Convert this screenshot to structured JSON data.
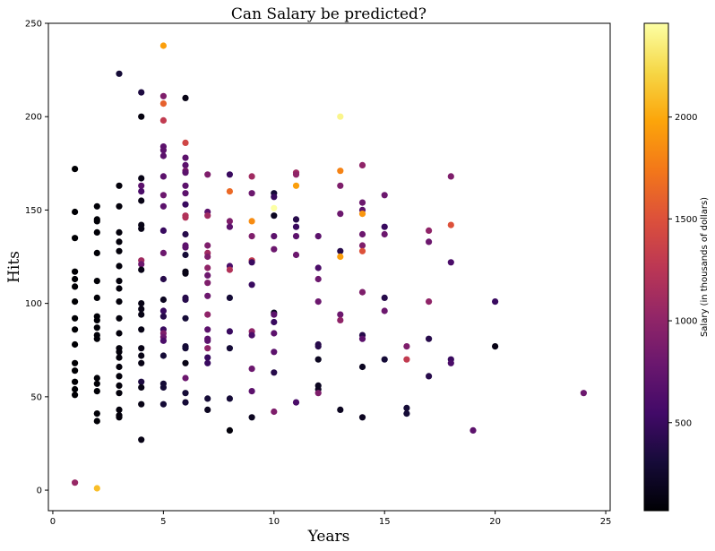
{
  "chart_data": {
    "type": "scatter",
    "title": "Can Salary be predicted?",
    "xlabel": "Years",
    "ylabel": "Hits",
    "xlim": [
      -0.2,
      25.2
    ],
    "ylim": [
      -11,
      250
    ],
    "x_ticks": [
      0,
      5,
      10,
      15,
      20,
      25
    ],
    "y_ticks": [
      0,
      50,
      100,
      150,
      200,
      250
    ],
    "grid": false,
    "colormap": "inferno",
    "colorbar": {
      "label": "Salary (in thousands of dollars)",
      "range": [
        68,
        2460
      ],
      "ticks": [
        500,
        1000,
        1500,
        2000
      ]
    },
    "points": [
      {
        "x": 1,
        "y": 172,
        "salary": 70
      },
      {
        "x": 1,
        "y": 149,
        "salary": 70
      },
      {
        "x": 1,
        "y": 135,
        "salary": 70
      },
      {
        "x": 1,
        "y": 117,
        "salary": 70
      },
      {
        "x": 1,
        "y": 113,
        "salary": 70
      },
      {
        "x": 1,
        "y": 109,
        "salary": 70
      },
      {
        "x": 1,
        "y": 101,
        "salary": 70
      },
      {
        "x": 1,
        "y": 92,
        "salary": 70
      },
      {
        "x": 1,
        "y": 86,
        "salary": 70
      },
      {
        "x": 1,
        "y": 78,
        "salary": 70
      },
      {
        "x": 1,
        "y": 68,
        "salary": 70
      },
      {
        "x": 1,
        "y": 64,
        "salary": 70
      },
      {
        "x": 1,
        "y": 58,
        "salary": 70
      },
      {
        "x": 1,
        "y": 54,
        "salary": 70
      },
      {
        "x": 1,
        "y": 51,
        "salary": 70
      },
      {
        "x": 1,
        "y": 4,
        "salary": 1050
      },
      {
        "x": 2,
        "y": 152,
        "salary": 80
      },
      {
        "x": 2,
        "y": 145,
        "salary": 80
      },
      {
        "x": 2,
        "y": 144,
        "salary": 80
      },
      {
        "x": 2,
        "y": 138,
        "salary": 80
      },
      {
        "x": 2,
        "y": 127,
        "salary": 80
      },
      {
        "x": 2,
        "y": 112,
        "salary": 80
      },
      {
        "x": 2,
        "y": 103,
        "salary": 80
      },
      {
        "x": 2,
        "y": 93,
        "salary": 80
      },
      {
        "x": 2,
        "y": 91,
        "salary": 80
      },
      {
        "x": 2,
        "y": 87,
        "salary": 80
      },
      {
        "x": 2,
        "y": 83,
        "salary": 80
      },
      {
        "x": 2,
        "y": 81,
        "salary": 80
      },
      {
        "x": 2,
        "y": 60,
        "salary": 80
      },
      {
        "x": 2,
        "y": 57,
        "salary": 80
      },
      {
        "x": 2,
        "y": 53,
        "salary": 80
      },
      {
        "x": 2,
        "y": 41,
        "salary": 80
      },
      {
        "x": 2,
        "y": 37,
        "salary": 80
      },
      {
        "x": 2,
        "y": 1,
        "salary": 2100
      },
      {
        "x": 3,
        "y": 223,
        "salary": 300
      },
      {
        "x": 3,
        "y": 163,
        "salary": 100
      },
      {
        "x": 3,
        "y": 152,
        "salary": 100
      },
      {
        "x": 3,
        "y": 138,
        "salary": 100
      },
      {
        "x": 3,
        "y": 133,
        "salary": 100
      },
      {
        "x": 3,
        "y": 128,
        "salary": 100
      },
      {
        "x": 3,
        "y": 120,
        "salary": 100
      },
      {
        "x": 3,
        "y": 112,
        "salary": 100
      },
      {
        "x": 3,
        "y": 108,
        "salary": 100
      },
      {
        "x": 3,
        "y": 101,
        "salary": 100
      },
      {
        "x": 3,
        "y": 92,
        "salary": 100
      },
      {
        "x": 3,
        "y": 84,
        "salary": 100
      },
      {
        "x": 3,
        "y": 76,
        "salary": 100
      },
      {
        "x": 3,
        "y": 74,
        "salary": 100
      },
      {
        "x": 3,
        "y": 71,
        "salary": 100
      },
      {
        "x": 3,
        "y": 66,
        "salary": 100
      },
      {
        "x": 3,
        "y": 61,
        "salary": 100
      },
      {
        "x": 3,
        "y": 56,
        "salary": 100
      },
      {
        "x": 3,
        "y": 52,
        "salary": 100
      },
      {
        "x": 3,
        "y": 43,
        "salary": 100
      },
      {
        "x": 3,
        "y": 40,
        "salary": 100
      },
      {
        "x": 3,
        "y": 39,
        "salary": 100
      },
      {
        "x": 4,
        "y": 213,
        "salary": 350
      },
      {
        "x": 4,
        "y": 200,
        "salary": 120
      },
      {
        "x": 4,
        "y": 167,
        "salary": 150
      },
      {
        "x": 4,
        "y": 163,
        "salary": 700
      },
      {
        "x": 4,
        "y": 160,
        "salary": 600
      },
      {
        "x": 4,
        "y": 155,
        "salary": 150
      },
      {
        "x": 4,
        "y": 142,
        "salary": 150
      },
      {
        "x": 4,
        "y": 140,
        "salary": 150
      },
      {
        "x": 4,
        "y": 123,
        "salary": 1100
      },
      {
        "x": 4,
        "y": 121,
        "salary": 800
      },
      {
        "x": 4,
        "y": 118,
        "salary": 150
      },
      {
        "x": 4,
        "y": 100,
        "salary": 150
      },
      {
        "x": 4,
        "y": 97,
        "salary": 150
      },
      {
        "x": 4,
        "y": 94,
        "salary": 150
      },
      {
        "x": 4,
        "y": 86,
        "salary": 150
      },
      {
        "x": 4,
        "y": 76,
        "salary": 150
      },
      {
        "x": 4,
        "y": 72,
        "salary": 150
      },
      {
        "x": 4,
        "y": 68,
        "salary": 150
      },
      {
        "x": 4,
        "y": 58,
        "salary": 350
      },
      {
        "x": 4,
        "y": 55,
        "salary": 150
      },
      {
        "x": 4,
        "y": 46,
        "salary": 150
      },
      {
        "x": 4,
        "y": 27,
        "salary": 150
      },
      {
        "x": 5,
        "y": 238,
        "salary": 1950
      },
      {
        "x": 5,
        "y": 211,
        "salary": 900
      },
      {
        "x": 5,
        "y": 207,
        "salary": 1600
      },
      {
        "x": 5,
        "y": 198,
        "salary": 1300
      },
      {
        "x": 5,
        "y": 184,
        "salary": 700
      },
      {
        "x": 5,
        "y": 182,
        "salary": 700
      },
      {
        "x": 5,
        "y": 179,
        "salary": 700
      },
      {
        "x": 5,
        "y": 168,
        "salary": 700
      },
      {
        "x": 5,
        "y": 158,
        "salary": 800
      },
      {
        "x": 5,
        "y": 152,
        "salary": 700
      },
      {
        "x": 5,
        "y": 139,
        "salary": 500
      },
      {
        "x": 5,
        "y": 127,
        "salary": 800
      },
      {
        "x": 5,
        "y": 113,
        "salary": 400
      },
      {
        "x": 5,
        "y": 102,
        "salary": 200
      },
      {
        "x": 5,
        "y": 96,
        "salary": 500
      },
      {
        "x": 5,
        "y": 93,
        "salary": 400
      },
      {
        "x": 5,
        "y": 86,
        "salary": 500
      },
      {
        "x": 5,
        "y": 84,
        "salary": 900
      },
      {
        "x": 5,
        "y": 82,
        "salary": 800
      },
      {
        "x": 5,
        "y": 80,
        "salary": 600
      },
      {
        "x": 5,
        "y": 72,
        "salary": 300
      },
      {
        "x": 5,
        "y": 57,
        "salary": 300
      },
      {
        "x": 5,
        "y": 55,
        "salary": 300
      },
      {
        "x": 5,
        "y": 46,
        "salary": 300
      },
      {
        "x": 6,
        "y": 210,
        "salary": 150
      },
      {
        "x": 6,
        "y": 186,
        "salary": 1400
      },
      {
        "x": 6,
        "y": 178,
        "salary": 700
      },
      {
        "x": 6,
        "y": 174,
        "salary": 700
      },
      {
        "x": 6,
        "y": 171,
        "salary": 900
      },
      {
        "x": 6,
        "y": 170,
        "salary": 700
      },
      {
        "x": 6,
        "y": 163,
        "salary": 700
      },
      {
        "x": 6,
        "y": 159,
        "salary": 700
      },
      {
        "x": 6,
        "y": 153,
        "salary": 500
      },
      {
        "x": 6,
        "y": 147,
        "salary": 1200
      },
      {
        "x": 6,
        "y": 146,
        "salary": 1200
      },
      {
        "x": 6,
        "y": 137,
        "salary": 400
      },
      {
        "x": 6,
        "y": 131,
        "salary": 700
      },
      {
        "x": 6,
        "y": 130,
        "salary": 700
      },
      {
        "x": 6,
        "y": 126,
        "salary": 300
      },
      {
        "x": 6,
        "y": 117,
        "salary": 150
      },
      {
        "x": 6,
        "y": 116,
        "salary": 150
      },
      {
        "x": 6,
        "y": 103,
        "salary": 400
      },
      {
        "x": 6,
        "y": 102,
        "salary": 400
      },
      {
        "x": 6,
        "y": 92,
        "salary": 300
      },
      {
        "x": 6,
        "y": 77,
        "salary": 300
      },
      {
        "x": 6,
        "y": 76,
        "salary": 300
      },
      {
        "x": 6,
        "y": 68,
        "salary": 150
      },
      {
        "x": 6,
        "y": 60,
        "salary": 800
      },
      {
        "x": 6,
        "y": 52,
        "salary": 300
      },
      {
        "x": 6,
        "y": 47,
        "salary": 300
      },
      {
        "x": 7,
        "y": 169,
        "salary": 900
      },
      {
        "x": 7,
        "y": 149,
        "salary": 700
      },
      {
        "x": 7,
        "y": 147,
        "salary": 1100
      },
      {
        "x": 7,
        "y": 131,
        "salary": 900
      },
      {
        "x": 7,
        "y": 127,
        "salary": 1100
      },
      {
        "x": 7,
        "y": 125,
        "salary": 900
      },
      {
        "x": 7,
        "y": 119,
        "salary": 1000
      },
      {
        "x": 7,
        "y": 115,
        "salary": 800
      },
      {
        "x": 7,
        "y": 111,
        "salary": 900
      },
      {
        "x": 7,
        "y": 104,
        "salary": 800
      },
      {
        "x": 7,
        "y": 94,
        "salary": 1000
      },
      {
        "x": 7,
        "y": 86,
        "salary": 700
      },
      {
        "x": 7,
        "y": 81,
        "salary": 700
      },
      {
        "x": 7,
        "y": 80,
        "salary": 700
      },
      {
        "x": 7,
        "y": 76,
        "salary": 1000
      },
      {
        "x": 7,
        "y": 71,
        "salary": 500
      },
      {
        "x": 7,
        "y": 68,
        "salary": 500
      },
      {
        "x": 7,
        "y": 49,
        "salary": 300
      },
      {
        "x": 7,
        "y": 43,
        "salary": 200
      },
      {
        "x": 8,
        "y": 169,
        "salary": 500
      },
      {
        "x": 8,
        "y": 160,
        "salary": 1650
      },
      {
        "x": 8,
        "y": 144,
        "salary": 900
      },
      {
        "x": 8,
        "y": 141,
        "salary": 700
      },
      {
        "x": 8,
        "y": 120,
        "salary": 600
      },
      {
        "x": 8,
        "y": 118,
        "salary": 1200
      },
      {
        "x": 8,
        "y": 103,
        "salary": 300
      },
      {
        "x": 8,
        "y": 85,
        "salary": 500
      },
      {
        "x": 8,
        "y": 76,
        "salary": 300
      },
      {
        "x": 8,
        "y": 49,
        "salary": 300
      },
      {
        "x": 8,
        "y": 32,
        "salary": 100
      },
      {
        "x": 9,
        "y": 168,
        "salary": 1100
      },
      {
        "x": 9,
        "y": 159,
        "salary": 800
      },
      {
        "x": 9,
        "y": 144,
        "salary": 1850
      },
      {
        "x": 9,
        "y": 136,
        "salary": 900
      },
      {
        "x": 9,
        "y": 123,
        "salary": 1300
      },
      {
        "x": 9,
        "y": 122,
        "salary": 500
      },
      {
        "x": 9,
        "y": 110,
        "salary": 500
      },
      {
        "x": 9,
        "y": 85,
        "salary": 1000
      },
      {
        "x": 9,
        "y": 83,
        "salary": 600
      },
      {
        "x": 9,
        "y": 65,
        "salary": 800
      },
      {
        "x": 9,
        "y": 53,
        "salary": 700
      },
      {
        "x": 9,
        "y": 39,
        "salary": 200
      },
      {
        "x": 10,
        "y": 159,
        "salary": 300
      },
      {
        "x": 10,
        "y": 157,
        "salary": 500
      },
      {
        "x": 10,
        "y": 151,
        "salary": 2460
      },
      {
        "x": 10,
        "y": 147,
        "salary": 200
      },
      {
        "x": 10,
        "y": 136,
        "salary": 700
      },
      {
        "x": 10,
        "y": 129,
        "salary": 800
      },
      {
        "x": 10,
        "y": 95,
        "salary": 200
      },
      {
        "x": 10,
        "y": 94,
        "salary": 700
      },
      {
        "x": 10,
        "y": 90,
        "salary": 500
      },
      {
        "x": 10,
        "y": 84,
        "salary": 700
      },
      {
        "x": 10,
        "y": 74,
        "salary": 700
      },
      {
        "x": 10,
        "y": 63,
        "salary": 400
      },
      {
        "x": 10,
        "y": 42,
        "salary": 900
      },
      {
        "x": 11,
        "y": 170,
        "salary": 1100
      },
      {
        "x": 11,
        "y": 169,
        "salary": 1000
      },
      {
        "x": 11,
        "y": 163,
        "salary": 1950
      },
      {
        "x": 11,
        "y": 145,
        "salary": 400
      },
      {
        "x": 11,
        "y": 141,
        "salary": 500
      },
      {
        "x": 11,
        "y": 136,
        "salary": 700
      },
      {
        "x": 11,
        "y": 126,
        "salary": 800
      },
      {
        "x": 11,
        "y": 47,
        "salary": 600
      },
      {
        "x": 12,
        "y": 136,
        "salary": 700
      },
      {
        "x": 12,
        "y": 119,
        "salary": 600
      },
      {
        "x": 12,
        "y": 113,
        "salary": 800
      },
      {
        "x": 12,
        "y": 101,
        "salary": 800
      },
      {
        "x": 12,
        "y": 78,
        "salary": 400
      },
      {
        "x": 12,
        "y": 77,
        "salary": 400
      },
      {
        "x": 12,
        "y": 70,
        "salary": 200
      },
      {
        "x": 12,
        "y": 56,
        "salary": 200
      },
      {
        "x": 12,
        "y": 54,
        "salary": 200
      },
      {
        "x": 12,
        "y": 52,
        "salary": 900
      },
      {
        "x": 13,
        "y": 200,
        "salary": 2400
      },
      {
        "x": 13,
        "y": 171,
        "salary": 1800
      },
      {
        "x": 13,
        "y": 163,
        "salary": 900
      },
      {
        "x": 13,
        "y": 148,
        "salary": 800
      },
      {
        "x": 13,
        "y": 128,
        "salary": 400
      },
      {
        "x": 13,
        "y": 125,
        "salary": 1950
      },
      {
        "x": 13,
        "y": 94,
        "salary": 800
      },
      {
        "x": 13,
        "y": 91,
        "salary": 1000
      },
      {
        "x": 13,
        "y": 43,
        "salary": 200
      },
      {
        "x": 14,
        "y": 174,
        "salary": 1000
      },
      {
        "x": 14,
        "y": 154,
        "salary": 800
      },
      {
        "x": 14,
        "y": 150,
        "salary": 700
      },
      {
        "x": 14,
        "y": 148,
        "salary": 1900
      },
      {
        "x": 14,
        "y": 137,
        "salary": 800
      },
      {
        "x": 14,
        "y": 131,
        "salary": 900
      },
      {
        "x": 14,
        "y": 128,
        "salary": 1500
      },
      {
        "x": 14,
        "y": 106,
        "salary": 900
      },
      {
        "x": 14,
        "y": 83,
        "salary": 400
      },
      {
        "x": 14,
        "y": 81,
        "salary": 700
      },
      {
        "x": 14,
        "y": 66,
        "salary": 200
      },
      {
        "x": 14,
        "y": 39,
        "salary": 200
      },
      {
        "x": 15,
        "y": 158,
        "salary": 800
      },
      {
        "x": 15,
        "y": 141,
        "salary": 500
      },
      {
        "x": 15,
        "y": 137,
        "salary": 800
      },
      {
        "x": 15,
        "y": 103,
        "salary": 400
      },
      {
        "x": 15,
        "y": 96,
        "salary": 800
      },
      {
        "x": 15,
        "y": 70,
        "salary": 300
      },
      {
        "x": 16,
        "y": 77,
        "salary": 900
      },
      {
        "x": 16,
        "y": 70,
        "salary": 1300
      },
      {
        "x": 16,
        "y": 44,
        "salary": 300
      },
      {
        "x": 16,
        "y": 41,
        "salary": 300
      },
      {
        "x": 17,
        "y": 139,
        "salary": 1000
      },
      {
        "x": 17,
        "y": 133,
        "salary": 800
      },
      {
        "x": 17,
        "y": 101,
        "salary": 1000
      },
      {
        "x": 17,
        "y": 81,
        "salary": 400
      },
      {
        "x": 17,
        "y": 61,
        "salary": 400
      },
      {
        "x": 18,
        "y": 168,
        "salary": 900
      },
      {
        "x": 18,
        "y": 142,
        "salary": 1500
      },
      {
        "x": 18,
        "y": 122,
        "salary": 600
      },
      {
        "x": 18,
        "y": 70,
        "salary": 500
      },
      {
        "x": 18,
        "y": 68,
        "salary": 600
      },
      {
        "x": 19,
        "y": 32,
        "salary": 700
      },
      {
        "x": 20,
        "y": 101,
        "salary": 500
      },
      {
        "x": 20,
        "y": 77,
        "salary": 150
      },
      {
        "x": 24,
        "y": 52,
        "salary": 800
      }
    ]
  }
}
